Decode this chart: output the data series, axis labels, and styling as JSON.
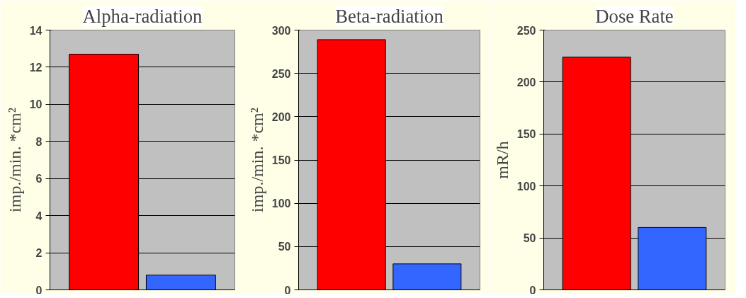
{
  "chart_data": [
    {
      "type": "bar",
      "title": "Alpha-radiation",
      "ylabel": "imp./min. *cm²",
      "categories": [
        null,
        null
      ],
      "values": [
        12.7,
        0.8
      ],
      "colors": [
        "#ff0000",
        "#3366ff"
      ],
      "ylim": [
        0,
        14
      ],
      "yticks": [
        0,
        2,
        4,
        6,
        8,
        10,
        12,
        14
      ],
      "grid": "y",
      "tick_labels": "y"
    },
    {
      "type": "bar",
      "title": "Beta-radiation",
      "ylabel": "imp./min. *cm²",
      "categories": [
        null,
        null
      ],
      "values": [
        289,
        30
      ],
      "colors": [
        "#ff0000",
        "#3366ff"
      ],
      "ylim": [
        0,
        300
      ],
      "yticks": [
        0,
        50,
        100,
        150,
        200,
        250,
        300
      ],
      "grid": "y",
      "tick_labels": "y"
    },
    {
      "type": "bar",
      "title": "Dose Rate",
      "ylabel": "mR/h",
      "categories": [
        null,
        null
      ],
      "values": [
        224,
        60
      ],
      "colors": [
        "#ff0000",
        "#3366ff"
      ],
      "ylim": [
        0,
        250
      ],
      "yticks": [
        0,
        50,
        100,
        150,
        200,
        250
      ],
      "grid": "y",
      "tick_labels": "y"
    }
  ]
}
